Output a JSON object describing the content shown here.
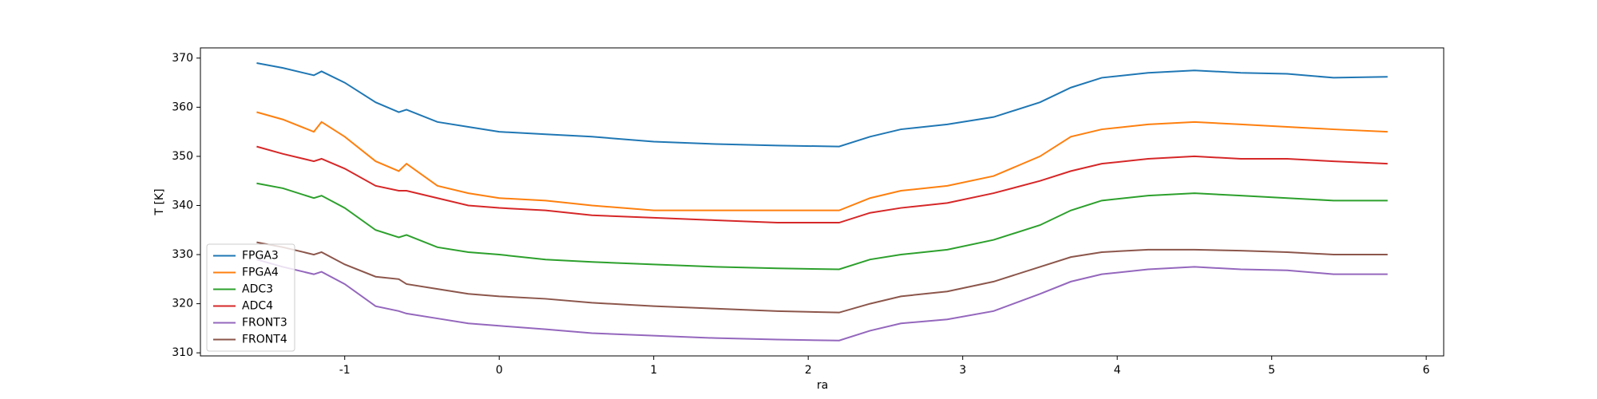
{
  "chart_data": {
    "type": "line",
    "x_label": "ra",
    "y_label": "T [K]",
    "x": [
      -1.57,
      -1.4,
      -1.2,
      -1.15,
      -1.0,
      -0.8,
      -0.65,
      -0.6,
      -0.4,
      -0.2,
      0,
      0.3,
      0.6,
      1.0,
      1.4,
      1.8,
      2.2,
      2.4,
      2.6,
      2.9,
      3.2,
      3.5,
      3.7,
      3.9,
      4.2,
      4.5,
      4.8,
      5.1,
      5.4,
      5.75
    ],
    "series": [
      {
        "name": "FPGA3",
        "color": "#1f77b4",
        "values": [
          369,
          368,
          366.5,
          367.3,
          365,
          361,
          359,
          359.5,
          357,
          356,
          355,
          354.5,
          354,
          353,
          352.5,
          352.2,
          352,
          354,
          355.5,
          356.5,
          358,
          361,
          364,
          366,
          367,
          367.5,
          367,
          366.8,
          366,
          366.2
        ]
      },
      {
        "name": "FPGA4",
        "color": "#ff7f0e",
        "values": [
          359,
          357.5,
          355,
          357,
          354,
          349,
          347,
          348.5,
          344,
          342.5,
          341.5,
          341,
          340,
          339,
          339,
          339,
          339,
          341.5,
          343,
          344,
          346,
          350,
          354,
          355.5,
          356.5,
          357,
          356.5,
          356,
          355.5,
          355
        ]
      },
      {
        "name": "ADC3",
        "color": "#2ca02c",
        "values": [
          344.5,
          343.5,
          341.5,
          342,
          339.5,
          335,
          333.5,
          334,
          331.5,
          330.5,
          330,
          329,
          328.5,
          328,
          327.5,
          327.2,
          327,
          329,
          330,
          331,
          333,
          336,
          339,
          341,
          342,
          342.5,
          342,
          341.5,
          341,
          341
        ]
      },
      {
        "name": "ADC4",
        "color": "#d62728",
        "values": [
          352,
          350.5,
          349,
          349.5,
          347.5,
          344,
          343,
          343,
          341.5,
          340,
          339.5,
          339,
          338,
          337.5,
          337,
          336.5,
          336.5,
          338.5,
          339.5,
          340.5,
          342.5,
          345,
          347,
          348.5,
          349.5,
          350,
          349.5,
          349.5,
          349,
          348.5
        ]
      },
      {
        "name": "FRONT3",
        "color": "#9467bd",
        "values": [
          329,
          327.5,
          326,
          326.5,
          324,
          319.5,
          318.5,
          318,
          317,
          316,
          315.5,
          314.8,
          314,
          313.5,
          313,
          312.7,
          312.5,
          314.5,
          316,
          316.8,
          318.5,
          322,
          324.5,
          326,
          327,
          327.5,
          327,
          326.8,
          326,
          326
        ]
      },
      {
        "name": "FRONT4",
        "color": "#8c564b",
        "values": [
          332.5,
          331.5,
          330,
          330.5,
          328,
          325.5,
          325,
          324,
          323,
          322,
          321.5,
          321,
          320.2,
          319.5,
          319,
          318.5,
          318.2,
          320,
          321.5,
          322.5,
          324.5,
          327.5,
          329.5,
          330.5,
          331,
          331,
          330.8,
          330.5,
          330,
          330
        ]
      }
    ],
    "xlim": [
      -1.934,
      6.113
    ],
    "xticks": [
      -1,
      0,
      1,
      2,
      3,
      4,
      5,
      6
    ],
    "ylim": [
      309.375,
      372.08
    ],
    "yticks": [
      310,
      320,
      330,
      340,
      350,
      360,
      370
    ],
    "legend": "lower left"
  }
}
